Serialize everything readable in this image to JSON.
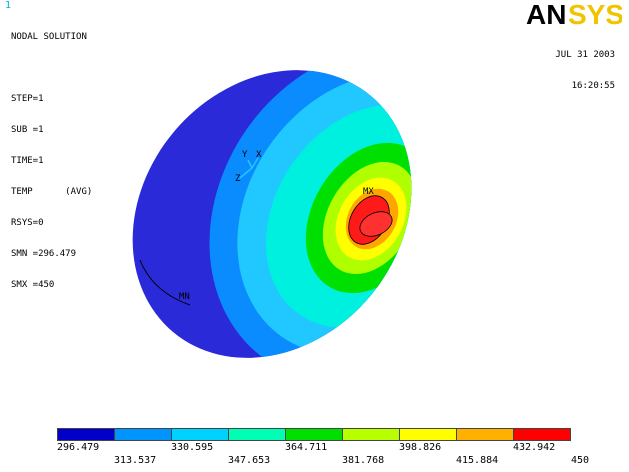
{
  "window": {
    "number": "1"
  },
  "solution_info": {
    "title": "NODAL SOLUTION",
    "lines": [
      "STEP=1",
      "SUB =1",
      "TIME=1",
      "TEMP      (AVG)",
      "RSYS=0",
      "SMN =296.479",
      "SMX =450"
    ]
  },
  "datetime": {
    "date": "JUL 31 2003",
    "time": "16:20:55"
  },
  "logo": {
    "text": "ANSYS",
    "colors": {
      "AN": "#000000",
      "SYS": "#f0c400"
    }
  },
  "triad": {
    "y_label": "Y",
    "x_label": "X",
    "z_label": "Z"
  },
  "markers": {
    "max_label": "MX",
    "min_label": "MN"
  },
  "legend": {
    "colors": [
      "#0000c8",
      "#0094ff",
      "#00d2ff",
      "#00ffb4",
      "#00e000",
      "#b8ff00",
      "#ffff00",
      "#ffb000",
      "#ff0000"
    ],
    "values_top": [
      "296.479",
      "330.595",
      "364.711",
      "398.826",
      "432.942"
    ],
    "values_bottom": [
      "313.537",
      "347.653",
      "381.768",
      "415.884",
      "450"
    ]
  },
  "contour_colors": {
    "dark_blue": "#2a2ad8",
    "blue": "#0a8cff",
    "light_blue": "#20c8ff",
    "cyan": "#00f0e0",
    "green": "#00e000",
    "yellow_green": "#b0ff00",
    "yellow": "#ffff00",
    "orange": "#ffa500",
    "red": "#ff1a1a"
  }
}
